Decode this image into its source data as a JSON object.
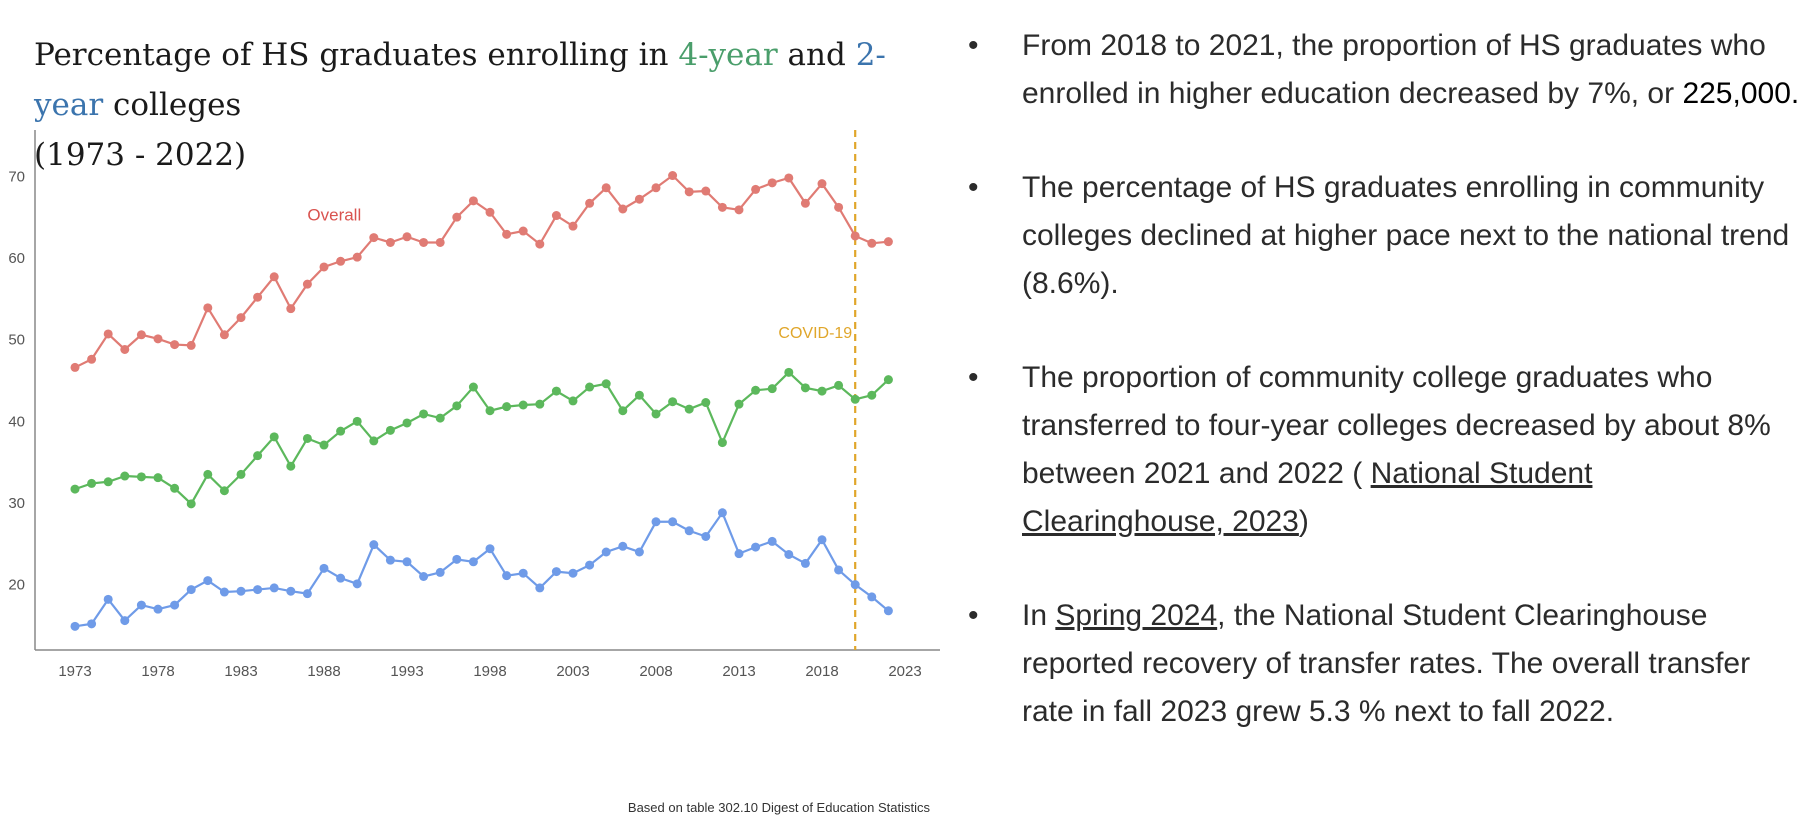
{
  "title": {
    "part1": "Percentage of HS graduates enrolling in ",
    "four_year": "4-year",
    "and": " and ",
    "two_year": "2-year",
    "part2": " colleges",
    "line2": "(1973 - 2022)"
  },
  "source_note": "Based on table 302.10 Digest of Education Statistics",
  "colors": {
    "overall": "#e07b74",
    "four_year": "#5cb85c",
    "two_year": "#6f9be8",
    "covid": "#e0a62a",
    "title_4": "#4a9e6b",
    "title_2": "#3b74ad"
  },
  "chart_data": {
    "type": "line",
    "title": "Percentage of HS graduates enrolling in 4-year and 2-year colleges (1973 - 2022)",
    "xlabel": "",
    "ylabel": "",
    "xlim": [
      1973,
      2023
    ],
    "ylim": [
      12,
      72
    ],
    "yticks": [
      20,
      30,
      40,
      50,
      60,
      70
    ],
    "xticks": [
      1973,
      1978,
      1983,
      1988,
      1993,
      1998,
      2003,
      2008,
      2013,
      2018,
      2023
    ],
    "covid_year": 2020,
    "covid_label": "COVID-19",
    "x": [
      1973,
      1974,
      1975,
      1976,
      1977,
      1978,
      1979,
      1980,
      1981,
      1982,
      1983,
      1984,
      1985,
      1986,
      1987,
      1988,
      1989,
      1990,
      1991,
      1992,
      1993,
      1994,
      1995,
      1996,
      1997,
      1998,
      1999,
      2000,
      2001,
      2002,
      2003,
      2004,
      2005,
      2006,
      2007,
      2008,
      2009,
      2010,
      2011,
      2012,
      2013,
      2014,
      2015,
      2016,
      2017,
      2018,
      2019,
      2020,
      2021,
      2022
    ],
    "series": [
      {
        "name": "Overall",
        "label": "Overall",
        "values": [
          46.6,
          47.6,
          50.7,
          48.8,
          50.6,
          50.1,
          49.4,
          49.3,
          53.9,
          50.6,
          52.7,
          55.2,
          57.7,
          53.8,
          56.8,
          58.9,
          59.6,
          60.1,
          62.5,
          61.9,
          62.6,
          61.9,
          61.9,
          65.0,
          67.0,
          65.6,
          62.9,
          63.3,
          61.7,
          65.2,
          63.9,
          66.7,
          68.6,
          66.0,
          67.2,
          68.6,
          70.1,
          68.1,
          68.2,
          66.2,
          65.9,
          68.4,
          69.2,
          69.8,
          66.7,
          69.1,
          66.2,
          62.7,
          61.8,
          62.0
        ]
      },
      {
        "name": "4-year",
        "values": [
          31.7,
          32.4,
          32.6,
          33.3,
          33.2,
          33.1,
          31.8,
          29.9,
          33.5,
          31.5,
          33.5,
          35.8,
          38.1,
          34.5,
          37.9,
          37.1,
          38.8,
          40.0,
          37.6,
          38.9,
          39.8,
          40.9,
          40.4,
          41.9,
          44.2,
          41.3,
          41.8,
          42.0,
          42.1,
          43.7,
          42.5,
          44.2,
          44.6,
          41.3,
          43.2,
          40.9,
          42.4,
          41.5,
          42.3,
          37.4,
          42.1,
          43.8,
          44.0,
          46.0,
          44.1,
          43.7,
          44.4,
          42.7,
          43.2,
          45.1
        ]
      },
      {
        "name": "2-year",
        "values": [
          14.9,
          15.2,
          18.2,
          15.6,
          17.5,
          17.0,
          17.5,
          19.4,
          20.5,
          19.1,
          19.2,
          19.4,
          19.6,
          19.2,
          18.9,
          22.0,
          20.8,
          20.1,
          24.9,
          23.0,
          22.8,
          21.0,
          21.5,
          23.1,
          22.8,
          24.4,
          21.1,
          21.4,
          19.6,
          21.6,
          21.4,
          22.4,
          24.0,
          24.7,
          24.0,
          27.7,
          27.7,
          26.6,
          25.9,
          28.8,
          23.8,
          24.6,
          25.3,
          23.7,
          22.6,
          25.5,
          21.8,
          20.0,
          18.5,
          16.8
        ]
      }
    ]
  },
  "bullets": [
    {
      "text": "From 2018 to 2021, the proportion of HS graduates who enrolled in higher education decreased by 7%, or ",
      "dark": "225,000."
    },
    {
      "text": "The percentage of HS graduates enrolling in community colleges declined at higher pace next to the national trend (8.6%)."
    },
    {
      "text": "The proportion of community college graduates who transferred to four-year colleges decreased by about 8% between 2021 and 2022 ( ",
      "link": "National Student Clearinghouse, 2023",
      "after": ")"
    },
    {
      "before": "In ",
      "link": "Spring 2024",
      "text": ", the National Student Clearinghouse reported  recovery of transfer rates. The overall transfer rate in fall 2023 grew 5.3 % next to fall 2022."
    }
  ]
}
